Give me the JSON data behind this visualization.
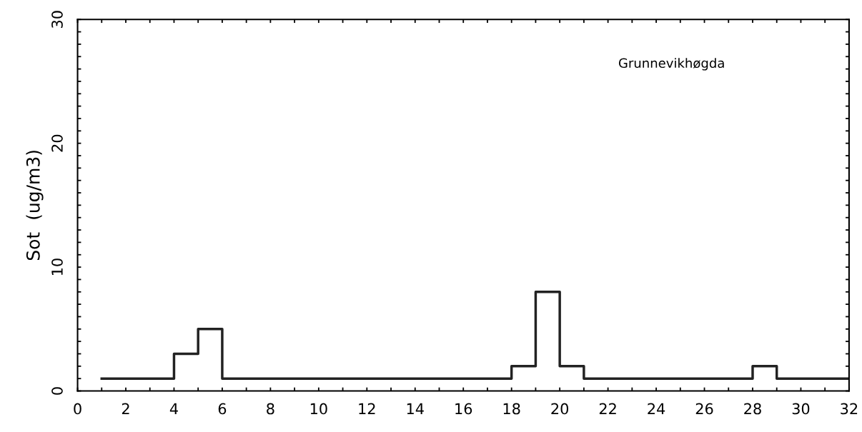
{
  "chart_data": {
    "type": "step",
    "ylabel": "Sot  (ug/m3)",
    "annotations": [
      "Grunnevikhøgda"
    ],
    "x": [
      1,
      2,
      3,
      4,
      5,
      6,
      7,
      8,
      9,
      10,
      11,
      12,
      13,
      14,
      15,
      16,
      17,
      18,
      19,
      20,
      21,
      22,
      23,
      24,
      25,
      26,
      27,
      28,
      29,
      30,
      31,
      32
    ],
    "series": [
      {
        "color": "#222222",
        "values": [
          1,
          1,
          1,
          3,
          5,
          1,
          1,
          1,
          1,
          1,
          1,
          1,
          1,
          1,
          1,
          1,
          1,
          2,
          8,
          2,
          1,
          1,
          1,
          1,
          1,
          1,
          1,
          2,
          1,
          1,
          1,
          1
        ]
      }
    ],
    "xlim": [
      0,
      32
    ],
    "ylim": [
      0,
      30
    ],
    "xticks": [
      0,
      {
        "value": 1,
        "label": null
      },
      2,
      {
        "value": 3,
        "label": null
      },
      4,
      {
        "value": 5,
        "label": null
      },
      6,
      {
        "value": 7,
        "label": null
      },
      8,
      {
        "value": 9,
        "label": null
      },
      10,
      {
        "value": 11,
        "label": null
      },
      12,
      {
        "value": 13,
        "label": null
      },
      14,
      {
        "value": 15,
        "label": null
      },
      16,
      {
        "value": 17,
        "label": null
      },
      18,
      {
        "value": 19,
        "label": null
      },
      20,
      {
        "value": 21,
        "label": null
      },
      22,
      {
        "value": 23,
        "label": null
      },
      24,
      {
        "value": 25,
        "label": null
      },
      26,
      {
        "value": 27,
        "label": null
      },
      28,
      {
        "value": 29,
        "label": null
      },
      30,
      {
        "value": 31,
        "label": null
      },
      32
    ],
    "yticks": [
      0,
      {
        "value": 1,
        "label": null
      },
      {
        "value": 2,
        "label": null
      },
      {
        "value": 3,
        "label": null
      },
      {
        "value": 4,
        "label": null
      },
      {
        "value": 5,
        "label": null
      },
      {
        "value": 6,
        "label": null
      },
      {
        "value": 7,
        "label": null
      },
      {
        "value": 8,
        "label": null
      },
      {
        "value": 9,
        "label": null
      },
      10,
      {
        "value": 11,
        "label": null
      },
      {
        "value": 12,
        "label": null
      },
      {
        "value": 13,
        "label": null
      },
      {
        "value": 14,
        "label": null
      },
      {
        "value": 15,
        "label": null
      },
      {
        "value": 16,
        "label": null
      },
      {
        "value": 17,
        "label": null
      },
      {
        "value": 18,
        "label": null
      },
      {
        "value": 19,
        "label": null
      },
      20,
      {
        "value": 21,
        "label": null
      },
      {
        "value": 22,
        "label": null
      },
      {
        "value": 23,
        "label": null
      },
      {
        "value": 24,
        "label": null
      },
      {
        "value": 25,
        "label": null
      },
      {
        "value": 26,
        "label": null
      },
      {
        "value": 27,
        "label": null
      },
      {
        "value": 28,
        "label": null
      },
      {
        "value": 29,
        "label": null
      },
      30
    ],
    "grid": false,
    "legend": false
  }
}
